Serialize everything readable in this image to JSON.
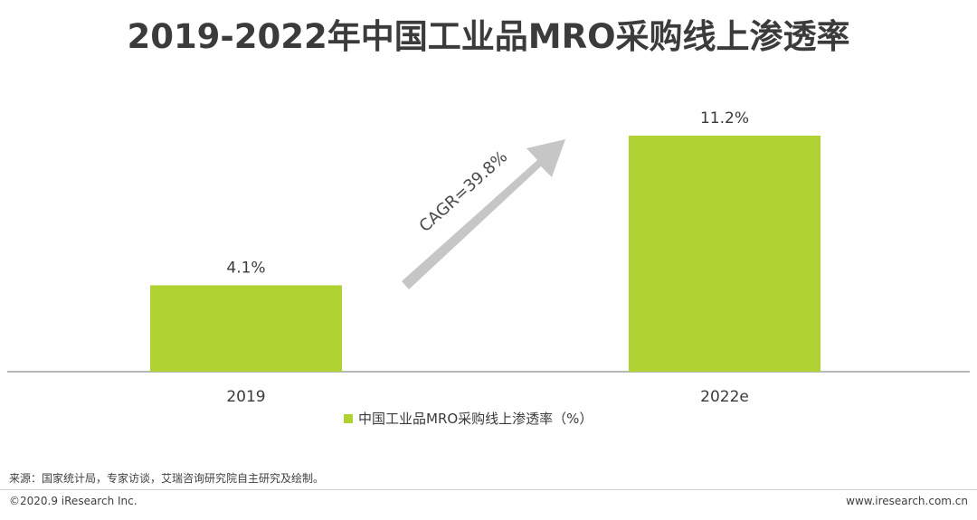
{
  "title": "2019-2022年中国工业品MRO采购线上渗透率",
  "chart_data": {
    "type": "bar",
    "categories": [
      "2019",
      "2022e"
    ],
    "series": [
      {
        "name": "中国工业品MRO采购线上渗透率（%）",
        "values": [
          4.1,
          11.2
        ],
        "color": "#b0d132"
      }
    ],
    "data_labels": [
      "4.1%",
      "11.2%"
    ],
    "annotation": "CAGR=39.8%",
    "ylim": [
      0,
      12
    ],
    "legend_position": "bottom"
  },
  "footer": {
    "source": "来源：国家统计局，专家访谈，艾瑞咨询研究院自主研究及绘制。",
    "copyright": "©2020.9 iResearch Inc.",
    "website": "www.iresearch.com.cn"
  }
}
